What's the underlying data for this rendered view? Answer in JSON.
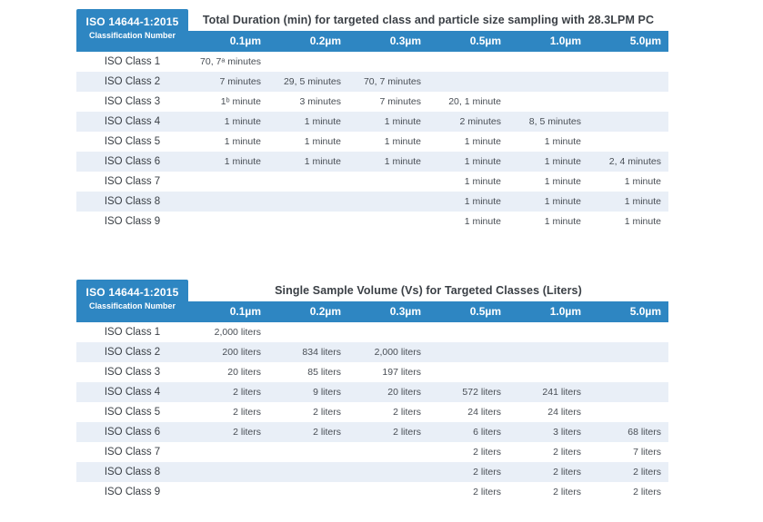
{
  "colors": {
    "header_blue": "#2e86c2",
    "row_stripe": "#e9eff7",
    "title_text": "#3b4046",
    "cell_text": "#484e55"
  },
  "tables": [
    {
      "id": "total-duration",
      "corner_line1": "ISO 14644-1:2015",
      "corner_line2": "Classification Number",
      "title": "Total Duration (min) for targeted class and particle size sampling with 28.3LPM PC",
      "columns": [
        "0.1µm",
        "0.2µm",
        "0.3µm",
        "0.5µm",
        "1.0µm",
        "5.0µm"
      ],
      "rows": [
        {
          "label": "ISO Class 1",
          "cells": [
            "70, 7ᵃ minutes",
            "",
            "",
            "",
            "",
            ""
          ]
        },
        {
          "label": "ISO Class 2",
          "cells": [
            "7 minutes",
            "29, 5 minutes",
            "70, 7 minutes",
            "",
            "",
            ""
          ]
        },
        {
          "label": "ISO Class 3",
          "cells": [
            "1ᵇ minute",
            "3 minutes",
            "7 minutes",
            "20, 1 minute",
            "",
            ""
          ]
        },
        {
          "label": "ISO Class 4",
          "cells": [
            "1 minute",
            "1 minute",
            "1 minute",
            "2 minutes",
            "8, 5 minutes",
            ""
          ]
        },
        {
          "label": "ISO Class 5",
          "cells": [
            "1 minute",
            "1 minute",
            "1 minute",
            "1 minute",
            "1 minute",
            ""
          ]
        },
        {
          "label": "ISO Class 6",
          "cells": [
            "1 minute",
            "1 minute",
            "1 minute",
            "1 minute",
            "1 minute",
            "2, 4 minutes"
          ]
        },
        {
          "label": "ISO Class 7",
          "cells": [
            "",
            "",
            "",
            "1 minute",
            "1 minute",
            "1 minute"
          ]
        },
        {
          "label": "ISO Class 8",
          "cells": [
            "",
            "",
            "",
            "1 minute",
            "1 minute",
            "1 minute"
          ]
        },
        {
          "label": "ISO Class 9",
          "cells": [
            "",
            "",
            "",
            "1 minute",
            "1 minute",
            "1 minute"
          ]
        }
      ]
    },
    {
      "id": "single-sample-volume",
      "corner_line1": "ISO 14644-1:2015",
      "corner_line2": "Classification Number",
      "title": "Single Sample Volume (Vs) for Targeted Classes (Liters)",
      "columns": [
        "0.1µm",
        "0.2µm",
        "0.3µm",
        "0.5µm",
        "1.0µm",
        "5.0µm"
      ],
      "rows": [
        {
          "label": "ISO Class 1",
          "cells": [
            "2,000 liters",
            "",
            "",
            "",
            "",
            ""
          ]
        },
        {
          "label": "ISO Class 2",
          "cells": [
            "200 liters",
            "834 liters",
            "2,000 liters",
            "",
            "",
            ""
          ]
        },
        {
          "label": "ISO Class 3",
          "cells": [
            "20 liters",
            "85 liters",
            "197 liters",
            "",
            "",
            ""
          ]
        },
        {
          "label": "ISO Class 4",
          "cells": [
            "2 liters",
            "9 liters",
            "20 liters",
            "572 liters",
            "241 liters",
            ""
          ]
        },
        {
          "label": "ISO Class 5",
          "cells": [
            "2 liters",
            "2 liters",
            "2 liters",
            "24 liters",
            "24 liters",
            ""
          ]
        },
        {
          "label": "ISO Class 6",
          "cells": [
            "2 liters",
            "2 liters",
            "2 liters",
            "6 liters",
            "3 liters",
            "68 liters"
          ]
        },
        {
          "label": "ISO Class 7",
          "cells": [
            "",
            "",
            "",
            "2 liters",
            "2 liters",
            "7 liters"
          ]
        },
        {
          "label": "ISO Class 8",
          "cells": [
            "",
            "",
            "",
            "2 liters",
            "2 liters",
            "2 liters"
          ]
        },
        {
          "label": "ISO Class 9",
          "cells": [
            "",
            "",
            "",
            "2 liters",
            "2 liters",
            "2 liters"
          ]
        }
      ]
    }
  ]
}
